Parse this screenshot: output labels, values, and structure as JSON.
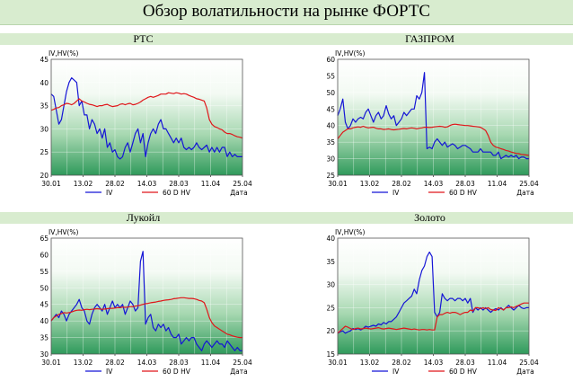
{
  "page_title": "Обзор волатильности на рынке ФОРТС",
  "chart_data": [
    {
      "type": "line",
      "title": "РТС",
      "ylabel": "IV,HV(%)",
      "xlabel": "Дата",
      "ylim": [
        20,
        45
      ],
      "yticks": [
        20,
        25,
        30,
        35,
        40,
        45
      ],
      "x_ticks": [
        "30.01",
        "13.02",
        "28.02",
        "14.03",
        "28.03",
        "11.04",
        "25.04"
      ],
      "legend": "bottom",
      "series": [
        {
          "name": "IV",
          "color": "#1515d6",
          "values": [
            37.5,
            37,
            34,
            31,
            32,
            35,
            38,
            40,
            41,
            40.5,
            40,
            35,
            36,
            33,
            33,
            30,
            32,
            31,
            29,
            30,
            28,
            30,
            26,
            27,
            25,
            25.5,
            24,
            23.5,
            24,
            26,
            27,
            25,
            27,
            29,
            30,
            27,
            29,
            24,
            27,
            29,
            30,
            29,
            31,
            32,
            30,
            30,
            29,
            28,
            27,
            28,
            27,
            28,
            26,
            25.5,
            26,
            25.5,
            26,
            27,
            26,
            25.5,
            26,
            26.5,
            25,
            26,
            25,
            26,
            25,
            26,
            26,
            24,
            25,
            24,
            24.5,
            24,
            24,
            24
          ]
        },
        {
          "name": "60 D HV",
          "color": "#e0161a",
          "values": [
            34,
            34.2,
            34.5,
            34.6,
            35,
            35.2,
            35.5,
            35.4,
            35.2,
            35.5,
            36,
            36.5,
            36,
            35.8,
            35.5,
            35.3,
            35.2,
            35,
            34.8,
            35,
            35,
            35.2,
            35.3,
            35,
            34.8,
            34.9,
            35,
            35.3,
            35.4,
            35.2,
            35.4,
            35.5,
            35.2,
            35.3,
            35.5,
            35.8,
            36.2,
            36.5,
            36.8,
            37,
            36.8,
            37,
            37.2,
            37.5,
            37.5,
            37.5,
            37.8,
            37.7,
            37.6,
            37.8,
            37.7,
            37.5,
            37.6,
            37.5,
            37.2,
            37,
            36.8,
            36.5,
            36.4,
            36.2,
            36,
            34.5,
            32,
            31,
            30.5,
            30.3,
            30,
            29.8,
            29.3,
            29,
            29,
            28.8,
            28.5,
            28.3,
            28.2,
            28
          ]
        }
      ]
    },
    {
      "type": "line",
      "title": "ГАЗПРОМ",
      "ylabel": "IV,HV(%)",
      "xlabel": "Дата",
      "ylim": [
        25,
        60
      ],
      "yticks": [
        25,
        30,
        35,
        40,
        45,
        50,
        55,
        60
      ],
      "x_ticks": [
        "30.01",
        "13.02",
        "28.02",
        "14.03",
        "28.03",
        "11.04",
        "25.04"
      ],
      "legend": "bottom",
      "series": [
        {
          "name": "IV",
          "color": "#1515d6",
          "values": [
            43,
            45,
            48,
            41,
            39,
            40,
            42,
            41,
            42,
            42.5,
            42,
            44,
            45,
            43,
            41,
            43,
            44,
            42,
            43,
            46,
            43.5,
            42,
            43,
            40,
            41,
            42,
            44,
            43,
            44,
            45,
            45,
            49,
            48,
            50,
            56,
            33,
            33.5,
            33,
            35,
            36,
            35,
            34,
            35,
            33.5,
            34,
            34.5,
            34,
            33,
            33.5,
            34,
            34,
            33.5,
            33,
            32,
            32,
            32,
            33,
            32,
            32,
            32,
            32,
            31,
            31,
            32,
            30,
            30.5,
            31,
            30.5,
            31,
            30.5,
            31,
            30,
            30.5,
            30.5,
            30,
            30
          ]
        },
        {
          "name": "60 D HV",
          "color": "#e0161a",
          "values": [
            36,
            37,
            38,
            38.5,
            39,
            39,
            39.3,
            39.5,
            39.6,
            39.5,
            39.8,
            39.5,
            39.3,
            39.4,
            39.5,
            39.2,
            39,
            39,
            38.8,
            38.9,
            39,
            38.8,
            38.7,
            38.8,
            38.9,
            39,
            39.1,
            39,
            39.2,
            39.3,
            39.2,
            39,
            39.2,
            39.3,
            39.5,
            39.5,
            39.4,
            39.5,
            39.6,
            39.7,
            39.8,
            39.7,
            39.5,
            39.6,
            40,
            40.3,
            40.4,
            40.3,
            40.2,
            40.1,
            40,
            40,
            39.9,
            39.8,
            39.7,
            39.6,
            39.5,
            39,
            38.5,
            37,
            35,
            34,
            33.5,
            33.3,
            33,
            32.8,
            32.5,
            32.3,
            32,
            31.8,
            31.6,
            31.5,
            31.3,
            31.2,
            31.1,
            31
          ]
        }
      ]
    },
    {
      "type": "line",
      "title": "Лукойл",
      "ylabel": "IV,HV(%)",
      "xlabel": "Дата",
      "ylim": [
        30,
        65
      ],
      "yticks": [
        30,
        35,
        40,
        45,
        50,
        55,
        60,
        65
      ],
      "x_ticks": [
        "30.01",
        "13.02",
        "28.02",
        "14.03",
        "28.03",
        "11.04",
        "25.04"
      ],
      "legend": "bottom",
      "series": [
        {
          "name": "IV",
          "color": "#1515d6",
          "values": [
            40,
            41,
            42,
            41,
            43,
            42,
            40,
            42,
            43,
            44,
            45,
            46.5,
            44,
            43,
            40,
            39,
            42,
            44,
            45,
            44,
            43,
            45,
            42,
            44,
            46,
            44,
            45,
            44,
            45,
            42,
            44,
            46,
            45,
            43,
            44,
            58,
            61,
            39,
            41,
            42,
            38,
            37,
            39,
            38,
            39,
            37,
            38,
            36,
            35,
            35,
            36,
            33,
            34,
            35,
            34,
            35,
            35,
            33,
            32,
            31,
            33,
            34,
            33,
            32,
            33,
            34,
            33,
            33,
            32,
            34,
            33,
            32,
            31,
            32,
            31,
            31
          ]
        },
        {
          "name": "60 D HV",
          "color": "#e0161a",
          "values": [
            40,
            41,
            41.5,
            42,
            42.2,
            42.5,
            42.4,
            42.5,
            42.7,
            43,
            43.2,
            43.3,
            43.2,
            43.4,
            43.5,
            43.4,
            43.5,
            43.6,
            43.7,
            43.6,
            43.5,
            43.6,
            43.7,
            43.8,
            43.8,
            43.9,
            44,
            44,
            44.2,
            44.1,
            44.2,
            44.3,
            44.3,
            44.5,
            44.6,
            44.8,
            45,
            45.2,
            45.3,
            45.5,
            45.6,
            45.7,
            45.9,
            46,
            46.2,
            46.3,
            46.4,
            46.5,
            46.7,
            46.8,
            46.9,
            47,
            47,
            46.9,
            46.8,
            46.8,
            46.7,
            46.5,
            46.2,
            46,
            45.5,
            43.5,
            41,
            39.5,
            38.5,
            38,
            37.5,
            37,
            36.5,
            36,
            35.8,
            35.5,
            35.3,
            35.1,
            35,
            35
          ]
        }
      ]
    },
    {
      "type": "line",
      "title": "Золото",
      "ylabel": "IV,HV(%)",
      "xlabel": "Дата",
      "ylim": [
        15,
        40
      ],
      "yticks": [
        15,
        20,
        25,
        30,
        35,
        40
      ],
      "x_ticks": [
        "30.01",
        "13.02",
        "28.02",
        "14.03",
        "28.03",
        "11.04",
        "25.04"
      ],
      "legend": "bottom",
      "series": [
        {
          "name": "IV",
          "color": "#1515d6",
          "values": [
            19.5,
            19.8,
            20,
            19.5,
            19.8,
            20,
            20.5,
            20.3,
            20.5,
            20.2,
            20.5,
            21,
            20.8,
            21,
            21.2,
            21,
            21.5,
            21.3,
            21.8,
            21.5,
            22,
            22,
            22.5,
            23,
            24,
            25,
            26,
            26.5,
            27,
            27.5,
            29,
            28,
            31,
            33,
            34,
            36,
            37,
            36,
            24,
            23,
            24,
            28,
            27,
            26.5,
            27,
            27,
            26.5,
            27,
            27,
            26.5,
            27,
            26,
            27,
            24,
            25,
            24.5,
            25,
            24.5,
            25,
            24.5,
            24,
            24.5,
            24.8,
            24.5,
            25,
            24.5,
            25,
            25.5,
            25,
            24.5,
            25,
            25.5,
            25,
            24.8,
            25,
            25
          ]
        },
        {
          "name": "60 D HV",
          "color": "#e0161a",
          "values": [
            19.5,
            20,
            20.5,
            21,
            20.8,
            20.5,
            20.3,
            20.5,
            20.6,
            20.4,
            20.5,
            20.6,
            20.5,
            20.4,
            20.5,
            20.6,
            20.7,
            20.5,
            20.4,
            20.5,
            20.6,
            20.5,
            20.4,
            20.3,
            20.4,
            20.5,
            20.6,
            20.5,
            20.4,
            20.3,
            20.4,
            20.3,
            20.2,
            20.3,
            20.3,
            20.2,
            20.3,
            20.2,
            20.2,
            23,
            23.5,
            23.5,
            23.8,
            24,
            23.8,
            24,
            24,
            23.8,
            23.5,
            23.8,
            24,
            24,
            24.5,
            24.3,
            25,
            25,
            24.8,
            25,
            24.8,
            25,
            24.6,
            24.5,
            24.4,
            25,
            24.8,
            24.5,
            25,
            25,
            25.2,
            25,
            25.3,
            25.5,
            25.8,
            26,
            26,
            26
          ]
        }
      ]
    }
  ]
}
